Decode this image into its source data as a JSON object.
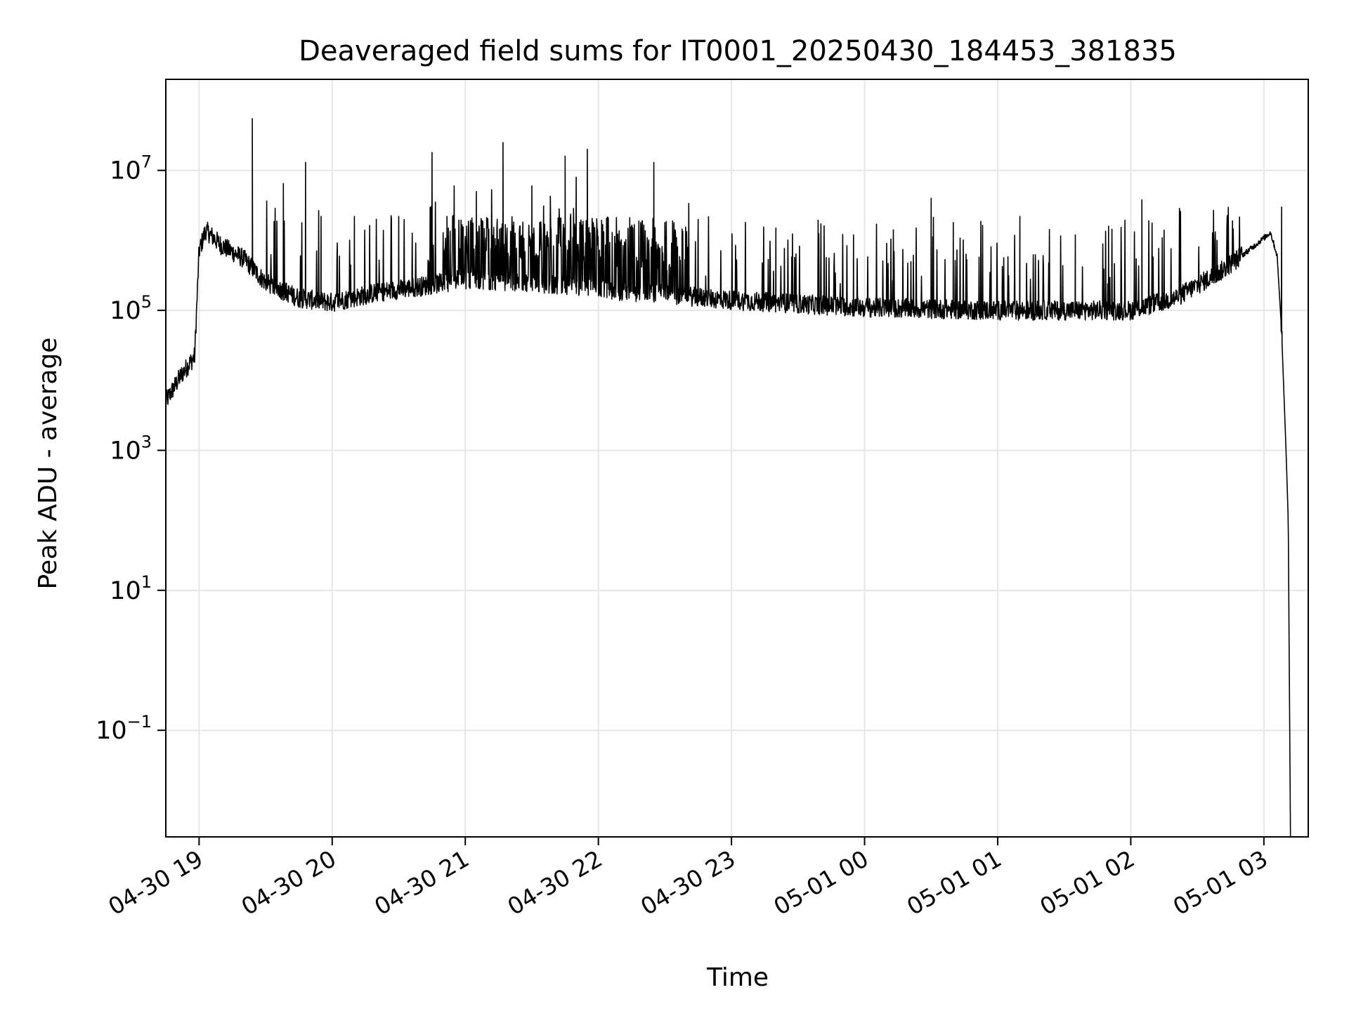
{
  "chart_data": {
    "type": "line",
    "title": "Deaveraged field sums for IT0001_20250430_184453_381835",
    "xlabel": "Time",
    "ylabel": "Peak ADU - average",
    "yscale": "log",
    "xlim": [
      "2025-04-30 18:45",
      "2025-05-01 03:20"
    ],
    "ylim": [
      0.003,
      200000000
    ],
    "grid": true,
    "legend": "none",
    "line_color": "#000000",
    "x_ticks": [
      {
        "label": "04-30 19",
        "value": "2025-04-30 19:00"
      },
      {
        "label": "04-30 20",
        "value": "2025-04-30 20:00"
      },
      {
        "label": "04-30 21",
        "value": "2025-04-30 21:00"
      },
      {
        "label": "04-30 22",
        "value": "2025-04-30 22:00"
      },
      {
        "label": "04-30 23",
        "value": "2025-04-30 23:00"
      },
      {
        "label": "05-01 00",
        "value": "2025-05-01 00:00"
      },
      {
        "label": "05-01 01",
        "value": "2025-05-01 01:00"
      },
      {
        "label": "05-01 02",
        "value": "2025-05-01 02:00"
      },
      {
        "label": "05-01 03",
        "value": "2025-05-01 03:00"
      }
    ],
    "y_ticks": [
      {
        "base": "10",
        "exp": "−1",
        "value": 0.1
      },
      {
        "base": "10",
        "exp": "1",
        "value": 10
      },
      {
        "base": "10",
        "exp": "3",
        "value": 1000
      },
      {
        "base": "10",
        "exp": "5",
        "value": 100000
      },
      {
        "base": "10",
        "exp": "7",
        "value": 10000000
      }
    ],
    "baseline": [
      {
        "x": "2025-04-30 18:45",
        "y": 5000
      },
      {
        "x": "2025-04-30 18:52",
        "y": 12000
      },
      {
        "x": "2025-04-30 18:58",
        "y": 22000
      },
      {
        "x": "2025-04-30 19:00",
        "y": 700000
      },
      {
        "x": "2025-04-30 19:03",
        "y": 1400000
      },
      {
        "x": "2025-04-30 19:10",
        "y": 850000
      },
      {
        "x": "2025-04-30 19:20",
        "y": 550000
      },
      {
        "x": "2025-04-30 19:30",
        "y": 250000
      },
      {
        "x": "2025-04-30 19:45",
        "y": 150000
      },
      {
        "x": "2025-04-30 20:00",
        "y": 130000
      },
      {
        "x": "2025-04-30 20:20",
        "y": 180000
      },
      {
        "x": "2025-04-30 20:40",
        "y": 220000
      },
      {
        "x": "2025-04-30 21:00",
        "y": 280000
      },
      {
        "x": "2025-04-30 21:30",
        "y": 250000
      },
      {
        "x": "2025-04-30 22:00",
        "y": 200000
      },
      {
        "x": "2025-04-30 22:30",
        "y": 170000
      },
      {
        "x": "2025-04-30 23:00",
        "y": 140000
      },
      {
        "x": "2025-05-01 00:00",
        "y": 110000
      },
      {
        "x": "2025-05-01 01:00",
        "y": 100000
      },
      {
        "x": "2025-05-01 02:00",
        "y": 100000
      },
      {
        "x": "2025-05-01 02:20",
        "y": 150000
      },
      {
        "x": "2025-05-01 02:40",
        "y": 350000
      },
      {
        "x": "2025-05-01 02:55",
        "y": 800000
      },
      {
        "x": "2025-05-01 03:03",
        "y": 1300000
      },
      {
        "x": "2025-05-01 03:06",
        "y": 600000
      },
      {
        "x": "2025-05-01 03:08",
        "y": 50000
      },
      {
        "x": "2025-05-01 03:10",
        "y": 1000
      },
      {
        "x": "2025-05-01 03:11",
        "y": 100
      },
      {
        "x": "2025-05-01 03:12",
        "y": 0.003
      }
    ],
    "dense_band": {
      "x_start": "2025-04-30 20:50",
      "x_end": "2025-04-30 22:40",
      "y_high": 2200000
    },
    "spikes": [
      {
        "x": "2025-04-30 19:24",
        "y": 55000000
      },
      {
        "x": "2025-04-30 19:38",
        "y": 6500000
      },
      {
        "x": "2025-04-30 19:48",
        "y": 13000000
      },
      {
        "x": "2025-04-30 19:55",
        "y": 2200000
      },
      {
        "x": "2025-04-30 20:10",
        "y": 2200000
      },
      {
        "x": "2025-04-30 20:30",
        "y": 2200000
      },
      {
        "x": "2025-04-30 20:45",
        "y": 18000000
      },
      {
        "x": "2025-04-30 20:55",
        "y": 6000000
      },
      {
        "x": "2025-04-30 21:05",
        "y": 5000000
      },
      {
        "x": "2025-04-30 21:17",
        "y": 25000000
      },
      {
        "x": "2025-04-30 21:30",
        "y": 6000000
      },
      {
        "x": "2025-04-30 21:45",
        "y": 16000000
      },
      {
        "x": "2025-04-30 21:50",
        "y": 8000000
      },
      {
        "x": "2025-04-30 21:55",
        "y": 20000000
      },
      {
        "x": "2025-04-30 22:25",
        "y": 13000000
      },
      {
        "x": "2025-04-30 22:45",
        "y": 2000000
      },
      {
        "x": "2025-04-30 23:20",
        "y": 1500000
      },
      {
        "x": "2025-04-30 23:55",
        "y": 1200000
      },
      {
        "x": "2025-05-01 00:30",
        "y": 4000000
      },
      {
        "x": "2025-05-01 00:40",
        "y": 1800000
      },
      {
        "x": "2025-05-01 01:10",
        "y": 2200000
      },
      {
        "x": "2025-05-01 01:35",
        "y": 1200000
      },
      {
        "x": "2025-05-01 01:50",
        "y": 1600000
      },
      {
        "x": "2025-05-01 02:05",
        "y": 3800000
      },
      {
        "x": "2025-05-01 02:15",
        "y": 1400000
      },
      {
        "x": "2025-05-01 03:08",
        "y": 3000000
      }
    ]
  }
}
